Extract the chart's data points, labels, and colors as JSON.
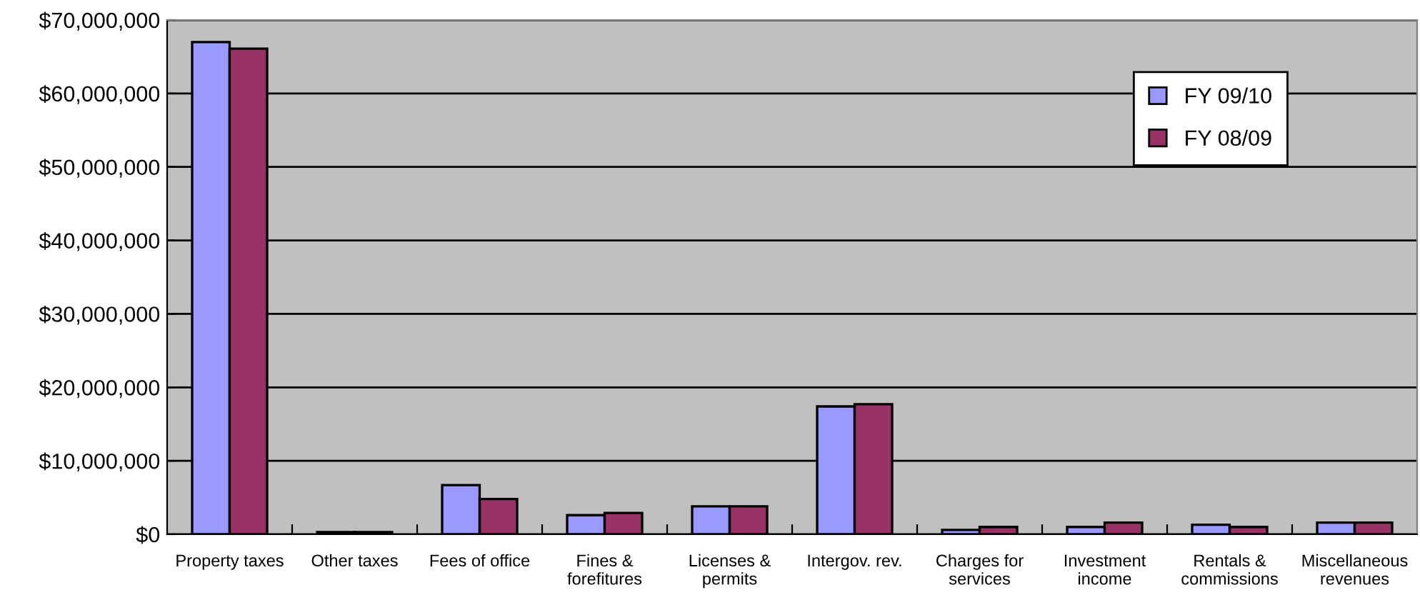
{
  "chart_data": {
    "type": "bar",
    "categories": [
      "Property taxes",
      "Other taxes",
      "Fees of office",
      "Fines &\nforefitures",
      "Licenses &\npermits",
      "Intergov. rev.",
      "Charges for\nservices",
      "Investment\nincome",
      "Rentals &\ncommissions",
      "Miscellaneous\nrevenues"
    ],
    "series": [
      {
        "name": "FY 09/10",
        "color": "#9999ff",
        "values": [
          67000000,
          300000,
          6700000,
          2600000,
          3800000,
          17400000,
          600000,
          1000000,
          1300000,
          1600000
        ]
      },
      {
        "name": "FY 08/09",
        "color": "#993366",
        "values": [
          66100000,
          300000,
          4800000,
          2900000,
          3800000,
          17700000,
          1000000,
          1600000,
          1000000,
          1600000
        ]
      }
    ],
    "ylim": [
      0,
      70000000
    ],
    "yticks": [
      {
        "value": 0,
        "label": "$0"
      },
      {
        "value": 10000000,
        "label": "$10,000,000"
      },
      {
        "value": 20000000,
        "label": "$20,000,000"
      },
      {
        "value": 30000000,
        "label": "$30,000,000"
      },
      {
        "value": 40000000,
        "label": "$40,000,000"
      },
      {
        "value": 50000000,
        "label": "$50,000,000"
      },
      {
        "value": 60000000,
        "label": "$60,000,000"
      },
      {
        "value": 70000000,
        "label": "$70,000,000"
      }
    ],
    "grid": "y",
    "legend": "top right"
  }
}
